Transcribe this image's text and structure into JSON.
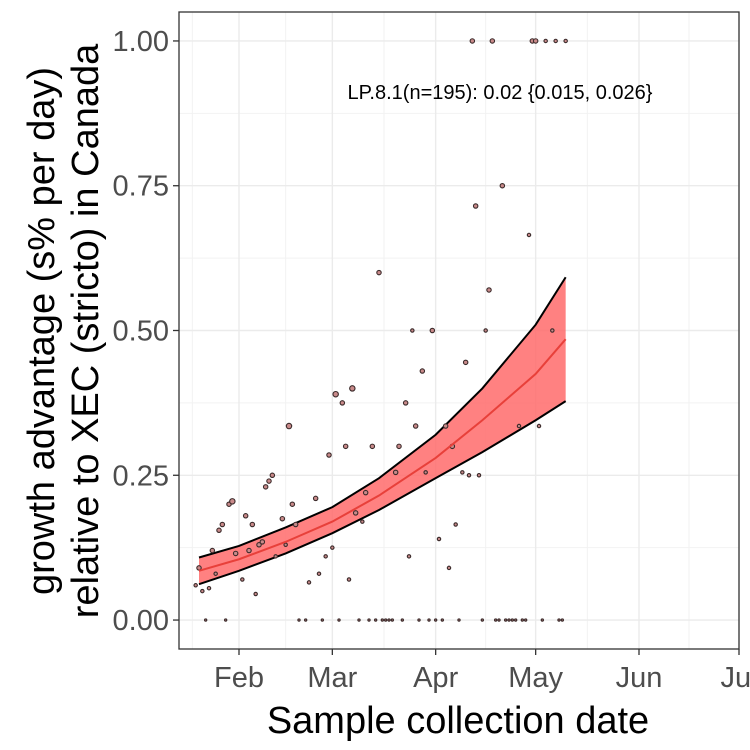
{
  "chart_data": {
    "type": "scatter",
    "title": "",
    "xlabel": "Sample collection date",
    "ylabel": [
      "growth advantage (s% per day)",
      "relative to XEC (stricto) in Canada"
    ],
    "annotation": "LP.8.1(n=195): 0.02 {0.015, 0.026}",
    "xlim": [
      "2025-01-14",
      "2025-07-01"
    ],
    "ylim": [
      -0.05,
      1.05
    ],
    "x_ticks": [
      {
        "date": "2025-02-01",
        "label": "Feb"
      },
      {
        "date": "2025-03-01",
        "label": "Mar"
      },
      {
        "date": "2025-04-01",
        "label": "Apr"
      },
      {
        "date": "2025-05-01",
        "label": "May"
      },
      {
        "date": "2025-06-01",
        "label": "Jun"
      },
      {
        "date": "2025-07-01",
        "label": "Jul"
      }
    ],
    "y_ticks": [
      0.0,
      0.25,
      0.5,
      0.75,
      1.0
    ],
    "y_tick_labels": [
      "0.00",
      "0.25",
      "0.50",
      "0.75",
      "1.00"
    ],
    "grid": true,
    "colors": {
      "ribbon": "#ff6b6b",
      "fit_line": "#e8403a",
      "ribbon_edge": "#000000",
      "point_fill": "#c98a8a",
      "point_edge": "#3a2a2a"
    },
    "fit": {
      "x": [
        "2025-01-20",
        "2025-02-01",
        "2025-02-15",
        "2025-03-01",
        "2025-03-15",
        "2025-04-01",
        "2025-04-15",
        "2025-05-01",
        "2025-05-10"
      ],
      "y": [
        0.085,
        0.105,
        0.135,
        0.17,
        0.215,
        0.28,
        0.345,
        0.425,
        0.485
      ],
      "lower": [
        0.062,
        0.085,
        0.115,
        0.15,
        0.19,
        0.245,
        0.29,
        0.345,
        0.378
      ],
      "upper": [
        0.108,
        0.128,
        0.16,
        0.195,
        0.245,
        0.32,
        0.4,
        0.51,
        0.592
      ]
    },
    "points": [
      {
        "x": "2025-01-19",
        "y": 0.06,
        "s": 2
      },
      {
        "x": "2025-01-20",
        "y": 0.09,
        "s": 3
      },
      {
        "x": "2025-01-21",
        "y": 0.05,
        "s": 2
      },
      {
        "x": "2025-01-22",
        "y": 0.0,
        "s": 1
      },
      {
        "x": "2025-01-23",
        "y": 0.055,
        "s": 2
      },
      {
        "x": "2025-01-24",
        "y": 0.12,
        "s": 3
      },
      {
        "x": "2025-01-25",
        "y": 0.08,
        "s": 2
      },
      {
        "x": "2025-01-26",
        "y": 0.155,
        "s": 3
      },
      {
        "x": "2025-01-27",
        "y": 0.165,
        "s": 3
      },
      {
        "x": "2025-01-28",
        "y": 0.0,
        "s": 1
      },
      {
        "x": "2025-01-29",
        "y": 0.2,
        "s": 3
      },
      {
        "x": "2025-01-30",
        "y": 0.205,
        "s": 4
      },
      {
        "x": "2025-01-31",
        "y": 0.115,
        "s": 3
      },
      {
        "x": "2025-02-02",
        "y": 0.07,
        "s": 2
      },
      {
        "x": "2025-02-03",
        "y": 0.18,
        "s": 3
      },
      {
        "x": "2025-02-04",
        "y": 0.12,
        "s": 3
      },
      {
        "x": "2025-02-05",
        "y": 0.165,
        "s": 3
      },
      {
        "x": "2025-02-06",
        "y": 0.045,
        "s": 2
      },
      {
        "x": "2025-02-07",
        "y": 0.13,
        "s": 3
      },
      {
        "x": "2025-02-08",
        "y": 0.135,
        "s": 3
      },
      {
        "x": "2025-02-09",
        "y": 0.23,
        "s": 3
      },
      {
        "x": "2025-02-10",
        "y": 0.24,
        "s": 3
      },
      {
        "x": "2025-02-11",
        "y": 0.25,
        "s": 3
      },
      {
        "x": "2025-02-12",
        "y": 0.11,
        "s": 2
      },
      {
        "x": "2025-02-14",
        "y": 0.175,
        "s": 3
      },
      {
        "x": "2025-02-15",
        "y": 0.13,
        "s": 2
      },
      {
        "x": "2025-02-16",
        "y": 0.335,
        "s": 4
      },
      {
        "x": "2025-02-17",
        "y": 0.2,
        "s": 3
      },
      {
        "x": "2025-02-18",
        "y": 0.165,
        "s": 3
      },
      {
        "x": "2025-02-19",
        "y": 0.0,
        "s": 1
      },
      {
        "x": "2025-02-21",
        "y": 0.0,
        "s": 1
      },
      {
        "x": "2025-02-22",
        "y": 0.065,
        "s": 2
      },
      {
        "x": "2025-02-24",
        "y": 0.21,
        "s": 3
      },
      {
        "x": "2025-02-25",
        "y": 0.08,
        "s": 2
      },
      {
        "x": "2025-02-26",
        "y": 0.0,
        "s": 1
      },
      {
        "x": "2025-02-27",
        "y": 0.11,
        "s": 2
      },
      {
        "x": "2025-02-28",
        "y": 0.285,
        "s": 3
      },
      {
        "x": "2025-03-01",
        "y": 0.125,
        "s": 2
      },
      {
        "x": "2025-03-02",
        "y": 0.39,
        "s": 4
      },
      {
        "x": "2025-03-03",
        "y": 0.0,
        "s": 1
      },
      {
        "x": "2025-03-04",
        "y": 0.375,
        "s": 3
      },
      {
        "x": "2025-03-05",
        "y": 0.3,
        "s": 3
      },
      {
        "x": "2025-03-06",
        "y": 0.07,
        "s": 2
      },
      {
        "x": "2025-03-07",
        "y": 0.4,
        "s": 4
      },
      {
        "x": "2025-03-08",
        "y": 0.185,
        "s": 3
      },
      {
        "x": "2025-03-09",
        "y": 0.0,
        "s": 1
      },
      {
        "x": "2025-03-10",
        "y": 0.17,
        "s": 2
      },
      {
        "x": "2025-03-11",
        "y": 0.22,
        "s": 3
      },
      {
        "x": "2025-03-12",
        "y": 0.0,
        "s": 1
      },
      {
        "x": "2025-03-13",
        "y": 0.3,
        "s": 3
      },
      {
        "x": "2025-03-14",
        "y": 0.0,
        "s": 1
      },
      {
        "x": "2025-03-15",
        "y": 0.6,
        "s": 3
      },
      {
        "x": "2025-03-16",
        "y": 0.0,
        "s": 1
      },
      {
        "x": "2025-03-17",
        "y": 0.0,
        "s": 1
      },
      {
        "x": "2025-03-18",
        "y": 0.0,
        "s": 1
      },
      {
        "x": "2025-03-19",
        "y": 0.0,
        "s": 1
      },
      {
        "x": "2025-03-20",
        "y": 0.255,
        "s": 3
      },
      {
        "x": "2025-03-21",
        "y": 0.3,
        "s": 3
      },
      {
        "x": "2025-03-22",
        "y": 0.0,
        "s": 1
      },
      {
        "x": "2025-03-23",
        "y": 0.375,
        "s": 3
      },
      {
        "x": "2025-03-24",
        "y": 0.11,
        "s": 2
      },
      {
        "x": "2025-03-25",
        "y": 0.5,
        "s": 2
      },
      {
        "x": "2025-03-26",
        "y": 0.335,
        "s": 3
      },
      {
        "x": "2025-03-27",
        "y": 0.0,
        "s": 1
      },
      {
        "x": "2025-03-28",
        "y": 0.43,
        "s": 3
      },
      {
        "x": "2025-03-29",
        "y": 0.255,
        "s": 2
      },
      {
        "x": "2025-03-30",
        "y": 0.0,
        "s": 1
      },
      {
        "x": "2025-03-31",
        "y": 0.5,
        "s": 3
      },
      {
        "x": "2025-04-01",
        "y": 0.0,
        "s": 1
      },
      {
        "x": "2025-04-02",
        "y": 0.14,
        "s": 2
      },
      {
        "x": "2025-04-03",
        "y": 0.0,
        "s": 1
      },
      {
        "x": "2025-04-04",
        "y": 0.335,
        "s": 3
      },
      {
        "x": "2025-04-05",
        "y": 0.09,
        "s": 2
      },
      {
        "x": "2025-04-06",
        "y": 0.3,
        "s": 3
      },
      {
        "x": "2025-04-07",
        "y": 0.165,
        "s": 2
      },
      {
        "x": "2025-04-08",
        "y": 0.0,
        "s": 1
      },
      {
        "x": "2025-04-09",
        "y": 0.255,
        "s": 2
      },
      {
        "x": "2025-04-10",
        "y": 0.445,
        "s": 3
      },
      {
        "x": "2025-04-11",
        "y": 0.25,
        "s": 2
      },
      {
        "x": "2025-04-12",
        "y": 1.0,
        "s": 3
      },
      {
        "x": "2025-04-13",
        "y": 0.715,
        "s": 3
      },
      {
        "x": "2025-04-14",
        "y": 0.25,
        "s": 2
      },
      {
        "x": "2025-04-15",
        "y": 0.0,
        "s": 1
      },
      {
        "x": "2025-04-16",
        "y": 0.5,
        "s": 2
      },
      {
        "x": "2025-04-17",
        "y": 0.57,
        "s": 3
      },
      {
        "x": "2025-04-18",
        "y": 1.0,
        "s": 3
      },
      {
        "x": "2025-04-19",
        "y": 0.0,
        "s": 1
      },
      {
        "x": "2025-04-20",
        "y": 0.0,
        "s": 1
      },
      {
        "x": "2025-04-21",
        "y": 0.75,
        "s": 3
      },
      {
        "x": "2025-04-22",
        "y": 0.0,
        "s": 1
      },
      {
        "x": "2025-04-23",
        "y": 0.0,
        "s": 1
      },
      {
        "x": "2025-04-24",
        "y": 0.0,
        "s": 1
      },
      {
        "x": "2025-04-25",
        "y": 0.0,
        "s": 1
      },
      {
        "x": "2025-04-26",
        "y": 0.335,
        "s": 2
      },
      {
        "x": "2025-04-27",
        "y": 0.0,
        "s": 1
      },
      {
        "x": "2025-04-28",
        "y": 0.0,
        "s": 1
      },
      {
        "x": "2025-04-29",
        "y": 0.665,
        "s": 2
      },
      {
        "x": "2025-04-30",
        "y": 1.0,
        "s": 3
      },
      {
        "x": "2025-05-01",
        "y": 1.0,
        "s": 3
      },
      {
        "x": "2025-05-02",
        "y": 0.335,
        "s": 2
      },
      {
        "x": "2025-05-03",
        "y": 0.0,
        "s": 1
      },
      {
        "x": "2025-05-04",
        "y": 1.0,
        "s": 2
      },
      {
        "x": "2025-05-06",
        "y": 0.5,
        "s": 2
      },
      {
        "x": "2025-05-07",
        "y": 1.0,
        "s": 2
      },
      {
        "x": "2025-05-08",
        "y": 0.0,
        "s": 1
      },
      {
        "x": "2025-05-09",
        "y": 0.0,
        "s": 1
      },
      {
        "x": "2025-05-10",
        "y": 1.0,
        "s": 2
      }
    ]
  }
}
